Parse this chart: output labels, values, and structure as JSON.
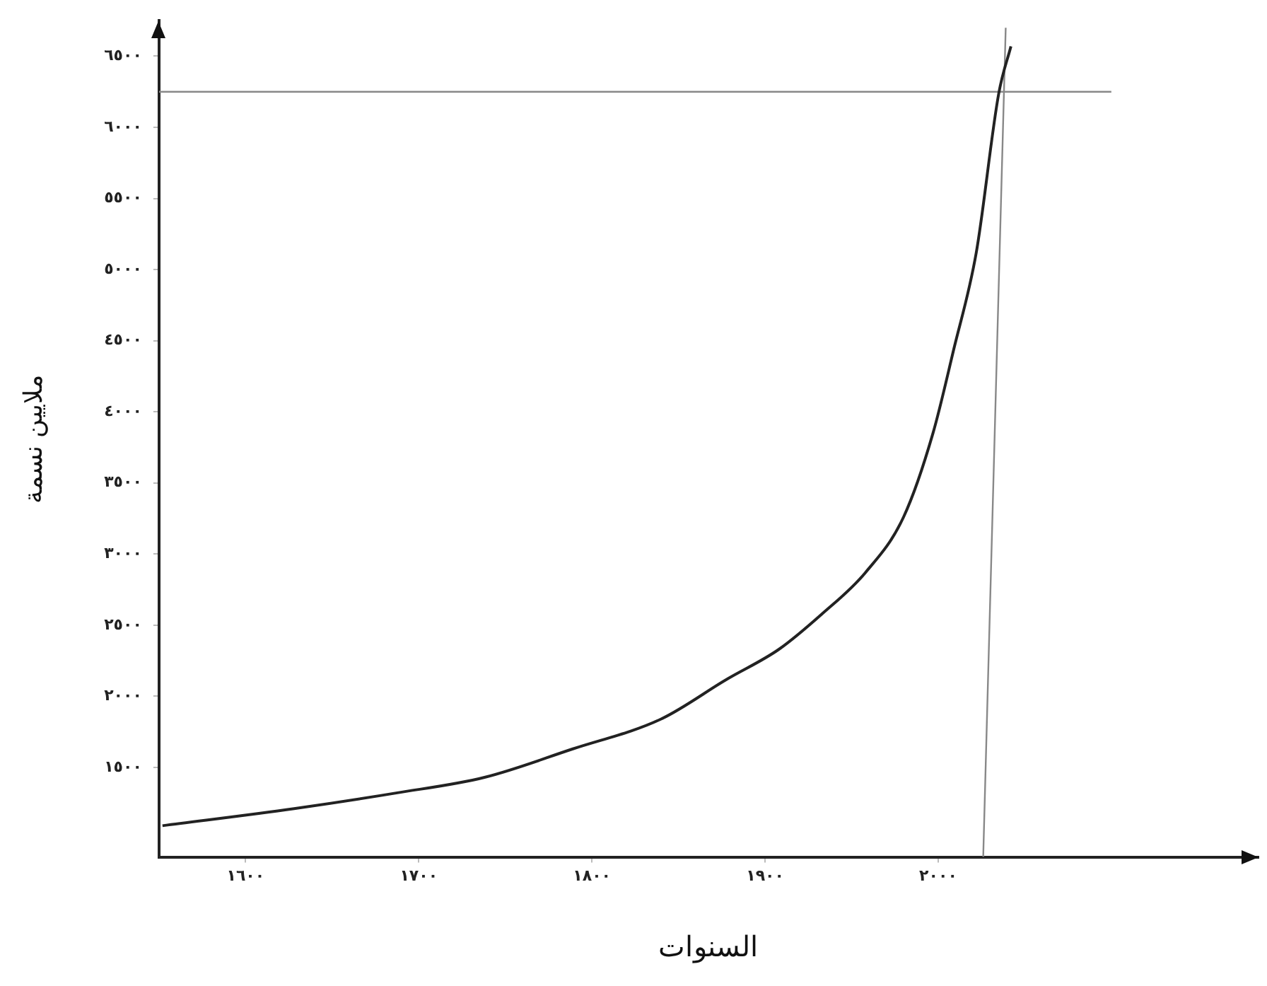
{
  "chart_data": {
    "type": "line",
    "xlabel": "السنوات",
    "ylabel": "ملايين نسمة",
    "xlim": [
      1550,
      2185
    ],
    "ylim": [
      870,
      6750
    ],
    "xticks": [
      {
        "value": 1600,
        "label": "١٦٠٠"
      },
      {
        "value": 1700,
        "label": "١٧٠٠"
      },
      {
        "value": 1800,
        "label": "١٨٠٠"
      },
      {
        "value": 1900,
        "label": "١٩٠٠"
      },
      {
        "value": 2000,
        "label": "٢٠٠٠"
      }
    ],
    "yticks": [
      {
        "value": 1500,
        "label": "١٥٠٠"
      },
      {
        "value": 2000,
        "label": "٢٠٠٠"
      },
      {
        "value": 2500,
        "label": "٢٥٠٠"
      },
      {
        "value": 3000,
        "label": "٣٠٠٠"
      },
      {
        "value": 3500,
        "label": "٣٥٠٠"
      },
      {
        "value": 4000,
        "label": "٤٠٠٠"
      },
      {
        "value": 4500,
        "label": "٤٥٠٠"
      },
      {
        "value": 5000,
        "label": "٥٠٠٠"
      },
      {
        "value": 5500,
        "label": "٥٥٠٠"
      },
      {
        "value": 6000,
        "label": "٦٠٠٠"
      },
      {
        "value": 6500,
        "label": "٦٥٠٠"
      }
    ],
    "grid": false,
    "legend": false,
    "marker": "none",
    "line_style": "solid",
    "series": [
      {
        "color": "#222222",
        "x": [
          1552,
          1628,
          1687,
          1738,
          1789,
          1840,
          1878,
          1908,
          1933,
          1958,
          1980,
          1997,
          2009,
          2022,
          2035,
          2042
        ],
        "values": [
          1090,
          1210,
          1320,
          1430,
          1630,
          1840,
          2120,
          2330,
          2580,
          2870,
          3260,
          3850,
          4440,
          5120,
          6240,
          6570
        ]
      },
      {
        "color": "#888888",
        "x": [
          1550,
          2100
        ],
        "values": [
          6250,
          6250
        ]
      },
      {
        "color": "#888888",
        "x": [
          2026,
          2039
        ],
        "values": [
          870,
          6700
        ]
      }
    ]
  }
}
